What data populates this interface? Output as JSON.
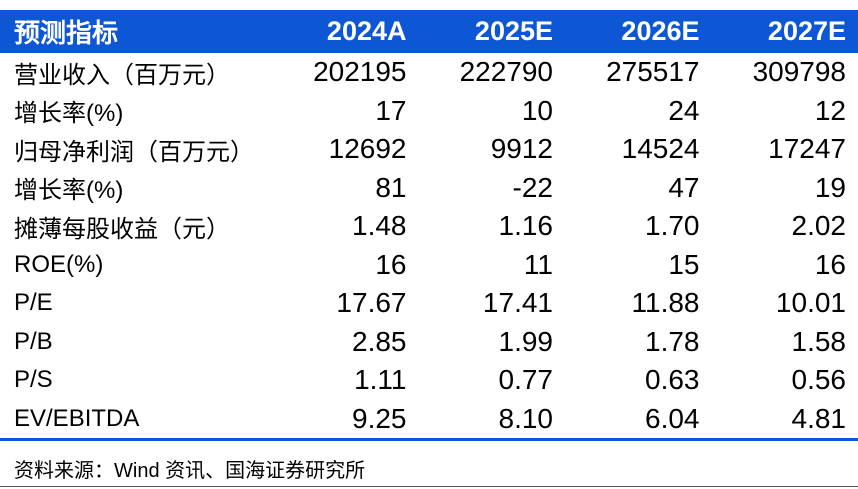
{
  "colors": {
    "header_bg": "#0D57D5",
    "header_text": "#FFFFFF",
    "body_text": "#000000",
    "divider": "#0D57D5",
    "bottom_rule": "#595959"
  },
  "table": {
    "header": {
      "label": "预测指标",
      "columns": [
        "2024A",
        "2025E",
        "2026E",
        "2027E"
      ]
    },
    "rows": [
      {
        "label": "营业收入（百万元）",
        "values": [
          "202195",
          "222790",
          "275517",
          "309798"
        ]
      },
      {
        "label": "增长率(%)",
        "values": [
          "17",
          "10",
          "24",
          "12"
        ]
      },
      {
        "label": "归母净利润（百万元）",
        "values": [
          "12692",
          "9912",
          "14524",
          "17247"
        ]
      },
      {
        "label": "增长率(%)",
        "values": [
          "81",
          "-22",
          "47",
          "19"
        ]
      },
      {
        "label": "摊薄每股收益（元）",
        "values": [
          "1.48",
          "1.16",
          "1.70",
          "2.02"
        ]
      },
      {
        "label": "ROE(%)",
        "values": [
          "16",
          "11",
          "15",
          "16"
        ]
      },
      {
        "label": "P/E",
        "values": [
          "17.67",
          "17.41",
          "11.88",
          "10.01"
        ]
      },
      {
        "label": "P/B",
        "values": [
          "2.85",
          "1.99",
          "1.78",
          "1.58"
        ]
      },
      {
        "label": "P/S",
        "values": [
          "1.11",
          "0.77",
          "0.63",
          "0.56"
        ]
      },
      {
        "label": "EV/EBITDA",
        "values": [
          "9.25",
          "8.10",
          "6.04",
          "4.81"
        ]
      }
    ],
    "source_note": "资料来源：Wind 资讯、国海证券研究所"
  },
  "chart_data": {
    "type": "table",
    "title": "预测指标",
    "columns": [
      "预测指标",
      "2024A",
      "2025E",
      "2026E",
      "2027E"
    ],
    "rows": [
      [
        "营业收入（百万元）",
        202195,
        222790,
        275517,
        309798
      ],
      [
        "增长率(%)",
        17,
        10,
        24,
        12
      ],
      [
        "归母净利润（百万元）",
        12692,
        9912,
        14524,
        17247
      ],
      [
        "增长率(%)",
        81,
        -22,
        47,
        19
      ],
      [
        "摊薄每股收益（元）",
        1.48,
        1.16,
        1.7,
        2.02
      ],
      [
        "ROE(%)",
        16,
        11,
        15,
        16
      ],
      [
        "P/E",
        17.67,
        17.41,
        11.88,
        10.01
      ],
      [
        "P/B",
        2.85,
        1.99,
        1.78,
        1.58
      ],
      [
        "P/S",
        1.11,
        0.77,
        0.63,
        0.56
      ],
      [
        "EV/EBITDA",
        9.25,
        8.1,
        6.04,
        4.81
      ]
    ]
  }
}
